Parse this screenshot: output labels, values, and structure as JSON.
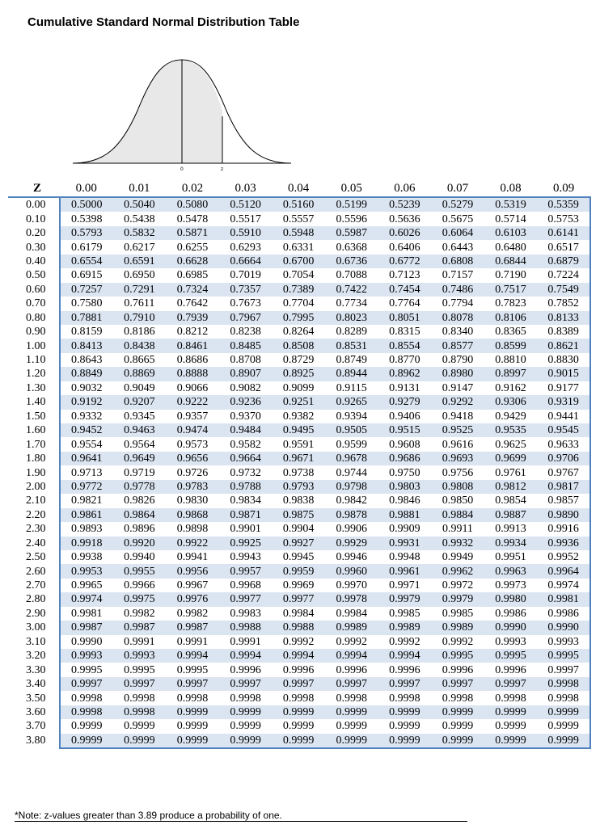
{
  "title": "Cumulative Standard Normal Distribution Table",
  "curve": {
    "mean_label": "0",
    "z_label": "z"
  },
  "table": {
    "z_header": "Z",
    "columns": [
      "0.00",
      "0.01",
      "0.02",
      "0.03",
      "0.04",
      "0.05",
      "0.06",
      "0.07",
      "0.08",
      "0.09"
    ],
    "rows": [
      {
        "z": "0.00",
        "v": [
          "0.5000",
          "0.5040",
          "0.5080",
          "0.5120",
          "0.5160",
          "0.5199",
          "0.5239",
          "0.5279",
          "0.5319",
          "0.5359"
        ]
      },
      {
        "z": "0.10",
        "v": [
          "0.5398",
          "0.5438",
          "0.5478",
          "0.5517",
          "0.5557",
          "0.5596",
          "0.5636",
          "0.5675",
          "0.5714",
          "0.5753"
        ]
      },
      {
        "z": "0.20",
        "v": [
          "0.5793",
          "0.5832",
          "0.5871",
          "0.5910",
          "0.5948",
          "0.5987",
          "0.6026",
          "0.6064",
          "0.6103",
          "0.6141"
        ]
      },
      {
        "z": "0.30",
        "v": [
          "0.6179",
          "0.6217",
          "0.6255",
          "0.6293",
          "0.6331",
          "0.6368",
          "0.6406",
          "0.6443",
          "0.6480",
          "0.6517"
        ]
      },
      {
        "z": "0.40",
        "v": [
          "0.6554",
          "0.6591",
          "0.6628",
          "0.6664",
          "0.6700",
          "0.6736",
          "0.6772",
          "0.6808",
          "0.6844",
          "0.6879"
        ]
      },
      {
        "z": "0.50",
        "v": [
          "0.6915",
          "0.6950",
          "0.6985",
          "0.7019",
          "0.7054",
          "0.7088",
          "0.7123",
          "0.7157",
          "0.7190",
          "0.7224"
        ]
      },
      {
        "z": "0.60",
        "v": [
          "0.7257",
          "0.7291",
          "0.7324",
          "0.7357",
          "0.7389",
          "0.7422",
          "0.7454",
          "0.7486",
          "0.7517",
          "0.7549"
        ]
      },
      {
        "z": "0.70",
        "v": [
          "0.7580",
          "0.7611",
          "0.7642",
          "0.7673",
          "0.7704",
          "0.7734",
          "0.7764",
          "0.7794",
          "0.7823",
          "0.7852"
        ]
      },
      {
        "z": "0.80",
        "v": [
          "0.7881",
          "0.7910",
          "0.7939",
          "0.7967",
          "0.7995",
          "0.8023",
          "0.8051",
          "0.8078",
          "0.8106",
          "0.8133"
        ]
      },
      {
        "z": "0.90",
        "v": [
          "0.8159",
          "0.8186",
          "0.8212",
          "0.8238",
          "0.8264",
          "0.8289",
          "0.8315",
          "0.8340",
          "0.8365",
          "0.8389"
        ]
      },
      {
        "z": "1.00",
        "v": [
          "0.8413",
          "0.8438",
          "0.8461",
          "0.8485",
          "0.8508",
          "0.8531",
          "0.8554",
          "0.8577",
          "0.8599",
          "0.8621"
        ]
      },
      {
        "z": "1.10",
        "v": [
          "0.8643",
          "0.8665",
          "0.8686",
          "0.8708",
          "0.8729",
          "0.8749",
          "0.8770",
          "0.8790",
          "0.8810",
          "0.8830"
        ]
      },
      {
        "z": "1.20",
        "v": [
          "0.8849",
          "0.8869",
          "0.8888",
          "0.8907",
          "0.8925",
          "0.8944",
          "0.8962",
          "0.8980",
          "0.8997",
          "0.9015"
        ]
      },
      {
        "z": "1.30",
        "v": [
          "0.9032",
          "0.9049",
          "0.9066",
          "0.9082",
          "0.9099",
          "0.9115",
          "0.9131",
          "0.9147",
          "0.9162",
          "0.9177"
        ]
      },
      {
        "z": "1.40",
        "v": [
          "0.9192",
          "0.9207",
          "0.9222",
          "0.9236",
          "0.9251",
          "0.9265",
          "0.9279",
          "0.9292",
          "0.9306",
          "0.9319"
        ]
      },
      {
        "z": "1.50",
        "v": [
          "0.9332",
          "0.9345",
          "0.9357",
          "0.9370",
          "0.9382",
          "0.9394",
          "0.9406",
          "0.9418",
          "0.9429",
          "0.9441"
        ]
      },
      {
        "z": "1.60",
        "v": [
          "0.9452",
          "0.9463",
          "0.9474",
          "0.9484",
          "0.9495",
          "0.9505",
          "0.9515",
          "0.9525",
          "0.9535",
          "0.9545"
        ]
      },
      {
        "z": "1.70",
        "v": [
          "0.9554",
          "0.9564",
          "0.9573",
          "0.9582",
          "0.9591",
          "0.9599",
          "0.9608",
          "0.9616",
          "0.9625",
          "0.9633"
        ]
      },
      {
        "z": "1.80",
        "v": [
          "0.9641",
          "0.9649",
          "0.9656",
          "0.9664",
          "0.9671",
          "0.9678",
          "0.9686",
          "0.9693",
          "0.9699",
          "0.9706"
        ]
      },
      {
        "z": "1.90",
        "v": [
          "0.9713",
          "0.9719",
          "0.9726",
          "0.9732",
          "0.9738",
          "0.9744",
          "0.9750",
          "0.9756",
          "0.9761",
          "0.9767"
        ]
      },
      {
        "z": "2.00",
        "v": [
          "0.9772",
          "0.9778",
          "0.9783",
          "0.9788",
          "0.9793",
          "0.9798",
          "0.9803",
          "0.9808",
          "0.9812",
          "0.9817"
        ]
      },
      {
        "z": "2.10",
        "v": [
          "0.9821",
          "0.9826",
          "0.9830",
          "0.9834",
          "0.9838",
          "0.9842",
          "0.9846",
          "0.9850",
          "0.9854",
          "0.9857"
        ]
      },
      {
        "z": "2.20",
        "v": [
          "0.9861",
          "0.9864",
          "0.9868",
          "0.9871",
          "0.9875",
          "0.9878",
          "0.9881",
          "0.9884",
          "0.9887",
          "0.9890"
        ]
      },
      {
        "z": "2.30",
        "v": [
          "0.9893",
          "0.9896",
          "0.9898",
          "0.9901",
          "0.9904",
          "0.9906",
          "0.9909",
          "0.9911",
          "0.9913",
          "0.9916"
        ]
      },
      {
        "z": "2.40",
        "v": [
          "0.9918",
          "0.9920",
          "0.9922",
          "0.9925",
          "0.9927",
          "0.9929",
          "0.9931",
          "0.9932",
          "0.9934",
          "0.9936"
        ]
      },
      {
        "z": "2.50",
        "v": [
          "0.9938",
          "0.9940",
          "0.9941",
          "0.9943",
          "0.9945",
          "0.9946",
          "0.9948",
          "0.9949",
          "0.9951",
          "0.9952"
        ]
      },
      {
        "z": "2.60",
        "v": [
          "0.9953",
          "0.9955",
          "0.9956",
          "0.9957",
          "0.9959",
          "0.9960",
          "0.9961",
          "0.9962",
          "0.9963",
          "0.9964"
        ]
      },
      {
        "z": "2.70",
        "v": [
          "0.9965",
          "0.9966",
          "0.9967",
          "0.9968",
          "0.9969",
          "0.9970",
          "0.9971",
          "0.9972",
          "0.9973",
          "0.9974"
        ]
      },
      {
        "z": "2.80",
        "v": [
          "0.9974",
          "0.9975",
          "0.9976",
          "0.9977",
          "0.9977",
          "0.9978",
          "0.9979",
          "0.9979",
          "0.9980",
          "0.9981"
        ]
      },
      {
        "z": "2.90",
        "v": [
          "0.9981",
          "0.9982",
          "0.9982",
          "0.9983",
          "0.9984",
          "0.9984",
          "0.9985",
          "0.9985",
          "0.9986",
          "0.9986"
        ]
      },
      {
        "z": "3.00",
        "v": [
          "0.9987",
          "0.9987",
          "0.9987",
          "0.9988",
          "0.9988",
          "0.9989",
          "0.9989",
          "0.9989",
          "0.9990",
          "0.9990"
        ]
      },
      {
        "z": "3.10",
        "v": [
          "0.9990",
          "0.9991",
          "0.9991",
          "0.9991",
          "0.9992",
          "0.9992",
          "0.9992",
          "0.9992",
          "0.9993",
          "0.9993"
        ]
      },
      {
        "z": "3.20",
        "v": [
          "0.9993",
          "0.9993",
          "0.9994",
          "0.9994",
          "0.9994",
          "0.9994",
          "0.9994",
          "0.9995",
          "0.9995",
          "0.9995"
        ]
      },
      {
        "z": "3.30",
        "v": [
          "0.9995",
          "0.9995",
          "0.9995",
          "0.9996",
          "0.9996",
          "0.9996",
          "0.9996",
          "0.9996",
          "0.9996",
          "0.9997"
        ]
      },
      {
        "z": "3.40",
        "v": [
          "0.9997",
          "0.9997",
          "0.9997",
          "0.9997",
          "0.9997",
          "0.9997",
          "0.9997",
          "0.9997",
          "0.9997",
          "0.9998"
        ]
      },
      {
        "z": "3.50",
        "v": [
          "0.9998",
          "0.9998",
          "0.9998",
          "0.9998",
          "0.9998",
          "0.9998",
          "0.9998",
          "0.9998",
          "0.9998",
          "0.9998"
        ]
      },
      {
        "z": "3.60",
        "v": [
          "0.9998",
          "0.9998",
          "0.9999",
          "0.9999",
          "0.9999",
          "0.9999",
          "0.9999",
          "0.9999",
          "0.9999",
          "0.9999"
        ]
      },
      {
        "z": "3.70",
        "v": [
          "0.9999",
          "0.9999",
          "0.9999",
          "0.9999",
          "0.9999",
          "0.9999",
          "0.9999",
          "0.9999",
          "0.9999",
          "0.9999"
        ]
      },
      {
        "z": "3.80",
        "v": [
          "0.9999",
          "0.9999",
          "0.9999",
          "0.9999",
          "0.9999",
          "0.9999",
          "0.9999",
          "0.9999",
          "0.9999",
          "0.9999"
        ]
      }
    ]
  },
  "note": "*Note: z-values greater than 3.89 produce a probability of one.",
  "colors": {
    "accent": "#4f81bd",
    "row_shade": "#dbe5f1",
    "curve_fill": "#e8e8e8"
  }
}
